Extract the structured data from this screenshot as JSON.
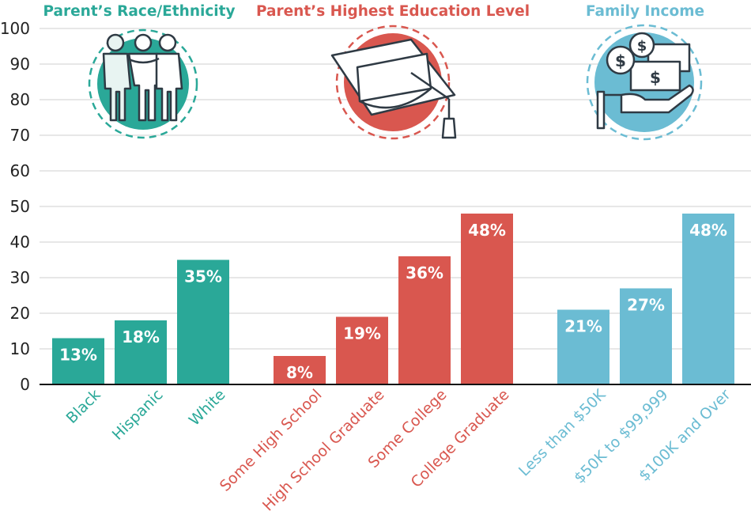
{
  "chart_data": {
    "type": "bar",
    "ylim": [
      0,
      100
    ],
    "yticks": [
      0,
      10,
      20,
      30,
      40,
      50,
      60,
      70,
      80,
      90,
      100
    ],
    "grid": true,
    "groups": [
      {
        "title": "Parent’s Race/Ethnicity",
        "color": "#2aa898",
        "icon": "people-icon",
        "categories": [
          "Black",
          "Hispanic",
          "White"
        ],
        "values": [
          13,
          18,
          35
        ],
        "labels": [
          "13%",
          "18%",
          "35%"
        ]
      },
      {
        "title": "Parent’s Highest Education Level",
        "color": "#d9574f",
        "icon": "graduation-cap-icon",
        "categories": [
          "Some High School",
          "High School Graduate",
          "Some College",
          "College Graduate"
        ],
        "values": [
          8,
          19,
          36,
          48
        ],
        "labels": [
          "8%",
          "19%",
          "36%",
          "48%"
        ]
      },
      {
        "title": "Family Income",
        "color": "#6bbcd3",
        "icon": "money-hand-icon",
        "categories": [
          "Less than $50K",
          "$50K to $99,999",
          "$100K and Over"
        ],
        "values": [
          21,
          27,
          48
        ],
        "labels": [
          "21%",
          "27%",
          "48%"
        ]
      }
    ]
  }
}
